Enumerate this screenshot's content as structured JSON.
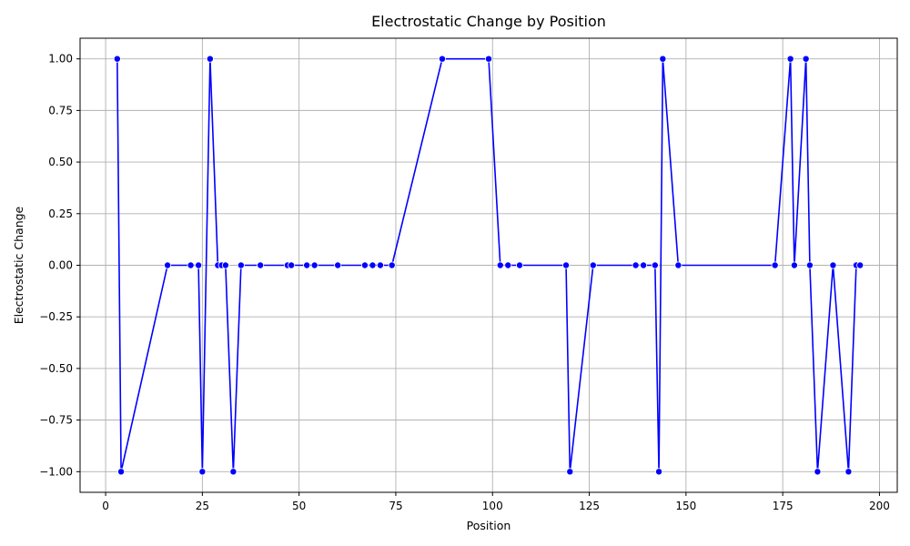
{
  "chart_data": {
    "type": "line",
    "title": "Electrostatic Change by Position",
    "xlabel": "Position",
    "ylabel": "Electrostatic Change",
    "xlim": [
      -6.6,
      204.6
    ],
    "ylim": [
      -1.1,
      1.1
    ],
    "xticks": [
      0,
      25,
      50,
      75,
      100,
      125,
      150,
      175,
      200
    ],
    "yticks": [
      -1.0,
      -0.75,
      -0.5,
      -0.25,
      0.0,
      0.25,
      0.5,
      0.75,
      1.0
    ],
    "ytick_labels": [
      "−1.00",
      "−0.75",
      "−0.50",
      "−0.25",
      "0.00",
      "0.25",
      "0.50",
      "0.75",
      "1.00"
    ],
    "grid": true,
    "line_color": "#0000ff",
    "marker_color": "#0000ff",
    "series": [
      {
        "x": [
          3,
          4,
          16,
          22,
          24,
          25,
          27,
          29,
          30,
          31,
          33,
          35,
          40,
          47,
          48,
          52,
          54,
          60,
          67,
          69,
          71,
          74,
          87,
          99,
          102,
          104,
          107,
          119,
          120,
          126,
          137,
          139,
          142,
          143,
          144,
          148,
          173,
          177,
          178,
          181,
          182,
          184,
          188,
          192,
          194,
          195
        ],
        "y": [
          1,
          -1,
          0,
          0,
          0,
          -1,
          1,
          0,
          0,
          0,
          -1,
          0,
          0,
          0,
          0,
          0,
          0,
          0,
          0,
          0,
          0,
          0,
          1,
          1,
          0,
          0,
          0,
          0,
          -1,
          0,
          0,
          0,
          0,
          -1,
          1,
          0,
          0,
          1,
          0,
          1,
          0,
          -1,
          0,
          -1,
          0,
          0
        ]
      }
    ]
  }
}
